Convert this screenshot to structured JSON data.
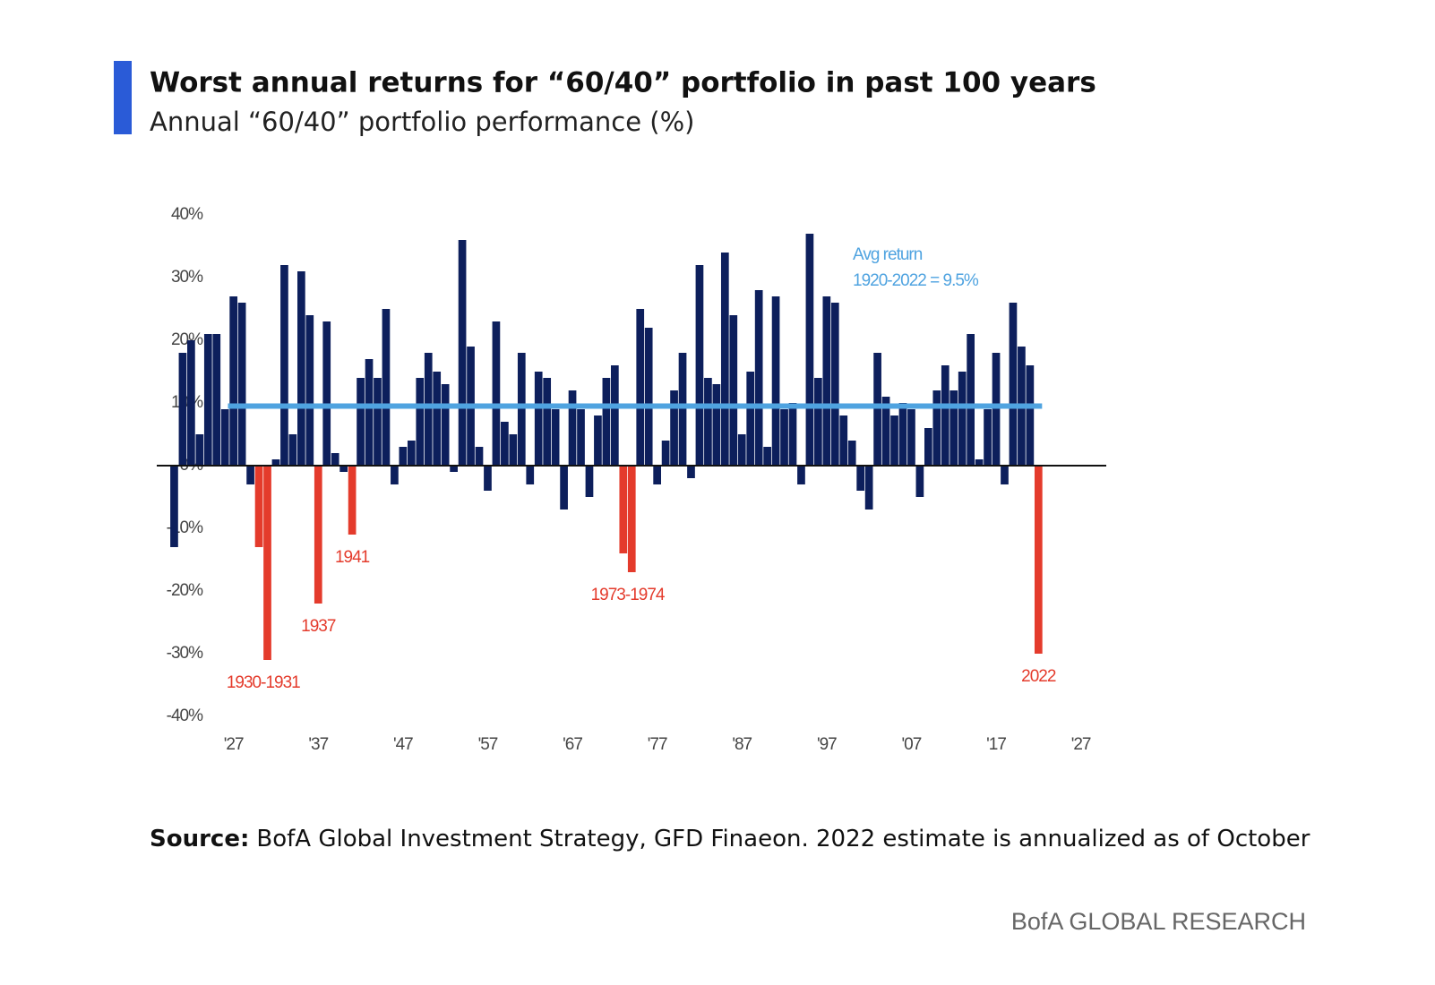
{
  "chart_data": {
    "type": "bar",
    "title": "Worst annual returns for “60/40” portfolio in past 100 years",
    "subtitle": "Annual “60/40” portfolio performance (%)",
    "source_label": "Source:",
    "source": "BofA Global Investment Strategy, GFD Finaeon. 2022 estimate is annualized as of October",
    "footer": "BofA GLOBAL RESEARCH",
    "x": [
      1920,
      1921,
      1922,
      1923,
      1924,
      1925,
      1926,
      1927,
      1928,
      1929,
      1930,
      1931,
      1932,
      1933,
      1934,
      1935,
      1936,
      1937,
      1938,
      1939,
      1940,
      1941,
      1942,
      1943,
      1944,
      1945,
      1946,
      1947,
      1948,
      1949,
      1950,
      1951,
      1952,
      1953,
      1954,
      1955,
      1956,
      1957,
      1958,
      1959,
      1960,
      1961,
      1962,
      1963,
      1964,
      1965,
      1966,
      1967,
      1968,
      1969,
      1970,
      1971,
      1972,
      1973,
      1974,
      1975,
      1976,
      1977,
      1978,
      1979,
      1980,
      1981,
      1982,
      1983,
      1984,
      1985,
      1986,
      1987,
      1988,
      1989,
      1990,
      1991,
      1992,
      1993,
      1994,
      1995,
      1996,
      1997,
      1998,
      1999,
      2000,
      2001,
      2002,
      2003,
      2004,
      2005,
      2006,
      2007,
      2008,
      2009,
      2010,
      2011,
      2012,
      2013,
      2014,
      2015,
      2016,
      2017,
      2018,
      2019,
      2020,
      2021,
      2022
    ],
    "values": [
      -13,
      18,
      20,
      5,
      21,
      21,
      9,
      27,
      26,
      -3,
      -13,
      -31,
      1,
      32,
      5,
      31,
      24,
      -22,
      23,
      2,
      -1,
      -11,
      14,
      17,
      14,
      25,
      -3,
      3,
      4,
      14,
      18,
      15,
      13,
      -1,
      36,
      19,
      3,
      -4,
      23,
      7,
      5,
      18,
      -3,
      15,
      14,
      9,
      -7,
      12,
      9,
      -5,
      8,
      14,
      16,
      -14,
      -17,
      25,
      22,
      -3,
      4,
      12,
      18,
      -2,
      32,
      14,
      13,
      34,
      24,
      5,
      15,
      28,
      3,
      27,
      9,
      10,
      -3,
      37,
      14,
      27,
      26,
      8,
      4,
      -4,
      -7,
      18,
      11,
      8,
      10,
      9,
      -5,
      6,
      12,
      16,
      12,
      15,
      21,
      1,
      9,
      18,
      -3,
      26,
      19,
      16,
      -30
    ],
    "color": "#0d1f5c",
    "highlight_color": "#e43b2c",
    "annotations": [
      {
        "label": "1930-1931",
        "years": [
          1930,
          1931
        ]
      },
      {
        "label": "1937",
        "years": [
          1937
        ]
      },
      {
        "label": "1941",
        "years": [
          1941
        ]
      },
      {
        "label": "1973-1974",
        "years": [
          1973,
          1974
        ]
      },
      {
        "label": "2022",
        "years": [
          2022
        ]
      }
    ],
    "avg": 9.5,
    "avg_color": "#4fa3e0",
    "avg_label": [
      "Avg return",
      "1920-2022 = 9.5%"
    ],
    "xlim": [
      1919,
      2030
    ],
    "xticks": [
      {
        "value": 1927,
        "label": "'27"
      },
      {
        "value": 1937,
        "label": "'37"
      },
      {
        "value": 1947,
        "label": "'47"
      },
      {
        "value": 1957,
        "label": "'57"
      },
      {
        "value": 1967,
        "label": "'67"
      },
      {
        "value": 1977,
        "label": "'77"
      },
      {
        "value": 1987,
        "label": "'87"
      },
      {
        "value": 1997,
        "label": "'97"
      },
      {
        "value": 2007,
        "label": "'07"
      },
      {
        "value": 2017,
        "label": "'17"
      },
      {
        "value": 2027,
        "label": "'27"
      }
    ],
    "ylim": [
      -40,
      40
    ],
    "yticks": [
      {
        "value": -40,
        "label": "-40%"
      },
      {
        "value": -30,
        "label": "-30%"
      },
      {
        "value": -20,
        "label": "-20%"
      },
      {
        "value": -10,
        "label": "-10%"
      },
      {
        "value": 0,
        "label": "0%"
      },
      {
        "value": 10,
        "label": "10%"
      },
      {
        "value": 20,
        "label": "20%"
      },
      {
        "value": 30,
        "label": "30%"
      },
      {
        "value": 40,
        "label": "40%"
      }
    ]
  }
}
